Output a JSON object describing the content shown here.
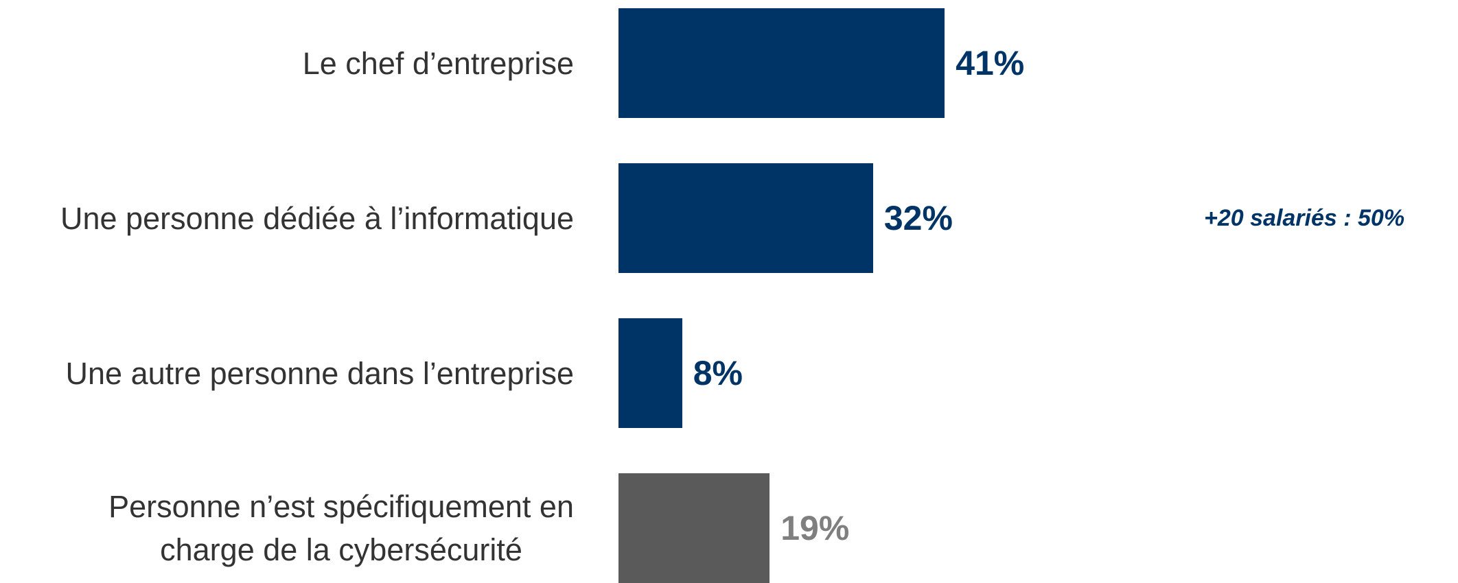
{
  "chart_data": {
    "type": "hbar",
    "categories": [
      "Le chef d’entreprise",
      "Une personne dédiée à l’informatique",
      "Une autre personne dans l’entreprise",
      "Personne n’est spécifiquement en\ncharge de la cybersécurité"
    ],
    "values": [
      41,
      32,
      8,
      19
    ],
    "value_labels": [
      "41%",
      "32%",
      "8%",
      "19%"
    ],
    "colors": [
      "#003366",
      "#003366",
      "#003366",
      "#5a5a5a"
    ],
    "value_label_colors": [
      "#003366",
      "#003366",
      "#003366",
      "#7f7f7f"
    ],
    "xlim": [
      0,
      100
    ],
    "annotations": [
      {
        "text": "+20 salariés : 50%",
        "category": 1,
        "color": "#003366"
      }
    ]
  }
}
